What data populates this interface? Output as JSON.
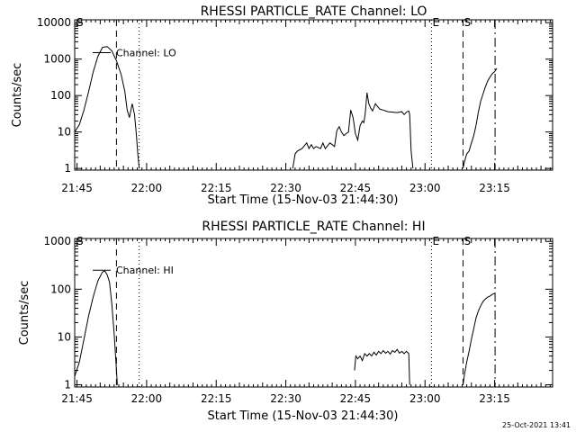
{
  "footer": {
    "timestamp": "25-Oct-2021 13:41"
  },
  "colors": {
    "background": "#ffffff",
    "ink": "#000000"
  },
  "chart_data": [
    {
      "type": "line",
      "title": "RHESSI PARTICLE_RATE Channel: LO",
      "xlabel": "Start Time (15-Nov-03 21:44:30)",
      "ylabel": "Counts/sec",
      "yscale": "log",
      "ylim": [
        0.9,
        12000
      ],
      "xlim_minutes": [
        0,
        103
      ],
      "y_ticks": [
        {
          "v": 1,
          "label": "1"
        },
        {
          "v": 10,
          "label": "10"
        },
        {
          "v": 100,
          "label": "100"
        },
        {
          "v": 1000,
          "label": "1000"
        },
        {
          "v": 10000,
          "label": "10000"
        }
      ],
      "x_ticks": [
        {
          "m": 0.5,
          "label": "21:45"
        },
        {
          "m": 15.5,
          "label": "22:00"
        },
        {
          "m": 30.5,
          "label": "22:15"
        },
        {
          "m": 45.5,
          "label": "22:30"
        },
        {
          "m": 60.5,
          "label": "22:45"
        },
        {
          "m": 75.5,
          "label": "23:00"
        },
        {
          "m": 90.5,
          "label": "23:15"
        }
      ],
      "legend": {
        "label": "Channel: LO",
        "at_y": 1500
      },
      "markers": [
        {
          "m": 0.2,
          "style": "none",
          "label": "S"
        },
        {
          "m": 9.0,
          "style": "dashed",
          "label": ""
        },
        {
          "m": 13.9,
          "style": "dotted",
          "label": ""
        },
        {
          "m": 76.9,
          "style": "dotted",
          "label": "E"
        },
        {
          "m": 83.7,
          "style": "dashed",
          "label": "S"
        },
        {
          "m": 90.6,
          "style": "dashdot",
          "label": ""
        }
      ],
      "series": [
        {
          "segments": [
            [
              [
                0,
                10
              ],
              [
                1,
                16
              ],
              [
                2,
                40
              ],
              [
                3,
                130
              ],
              [
                4,
                450
              ],
              [
                5,
                1200
              ],
              [
                6,
                2100
              ],
              [
                7,
                2200
              ],
              [
                8,
                1700
              ],
              [
                9,
                900
              ],
              [
                10,
                380
              ],
              [
                10.8,
                130
              ],
              [
                11.3,
                40
              ],
              [
                11.8,
                25
              ],
              [
                12.4,
                60
              ],
              [
                12.9,
                30
              ],
              [
                13.3,
                8
              ],
              [
                13.6,
                2.5
              ],
              [
                13.9,
                1
              ]
            ],
            [
              [
                47,
                1
              ],
              [
                47.5,
                2.5
              ],
              [
                48,
                3
              ],
              [
                49,
                3.5
              ],
              [
                50,
                5
              ],
              [
                50.5,
                3.5
              ],
              [
                51,
                4.5
              ],
              [
                51.5,
                3.5
              ],
              [
                52,
                4
              ],
              [
                53,
                3.5
              ],
              [
                53.5,
                5
              ],
              [
                54,
                3.5
              ],
              [
                55,
                5
              ],
              [
                55.5,
                4.5
              ],
              [
                56,
                4
              ],
              [
                56.5,
                11
              ],
              [
                57,
                14
              ],
              [
                57.5,
                10
              ],
              [
                58,
                8
              ],
              [
                58.5,
                9
              ],
              [
                59,
                10
              ],
              [
                59.5,
                40
              ],
              [
                60,
                25
              ],
              [
                60.5,
                9
              ],
              [
                61,
                6
              ],
              [
                61.5,
                15
              ],
              [
                62,
                20
              ],
              [
                62.3,
                18
              ],
              [
                62.6,
                30
              ],
              [
                63,
                120
              ],
              [
                63.4,
                60
              ],
              [
                63.8,
                45
              ],
              [
                64.2,
                38
              ],
              [
                64.8,
                60
              ],
              [
                65.3,
                50
              ],
              [
                65.8,
                42
              ],
              [
                66.5,
                40
              ],
              [
                67.5,
                36
              ],
              [
                68.5,
                35
              ],
              [
                69.5,
                34
              ],
              [
                70.5,
                36
              ],
              [
                71,
                30
              ],
              [
                71.5,
                35
              ],
              [
                72,
                38
              ],
              [
                72.2,
                30
              ],
              [
                72.5,
                3
              ],
              [
                72.9,
                1
              ]
            ],
            [
              [
                83.7,
                1
              ],
              [
                84,
                1.5
              ],
              [
                84.5,
                2.5
              ],
              [
                85,
                3
              ],
              [
                85.5,
                5
              ],
              [
                86,
                8
              ],
              [
                86.5,
                15
              ],
              [
                87,
                35
              ],
              [
                87.5,
                70
              ],
              [
                88,
                110
              ],
              [
                88.5,
                170
              ],
              [
                89,
                250
              ],
              [
                89.5,
                320
              ],
              [
                90,
                400
              ],
              [
                90.5,
                450
              ],
              [
                91,
                560
              ]
            ]
          ]
        }
      ]
    },
    {
      "type": "line",
      "title": "RHESSI PARTICLE_RATE Channel: HI",
      "xlabel": "Start Time (15-Nov-03 21:44:30)",
      "ylabel": "Counts/sec",
      "yscale": "log",
      "ylim": [
        0.9,
        1150
      ],
      "xlim_minutes": [
        0,
        103
      ],
      "y_ticks": [
        {
          "v": 1,
          "label": "1"
        },
        {
          "v": 10,
          "label": "10"
        },
        {
          "v": 100,
          "label": "100"
        },
        {
          "v": 1000,
          "label": "1000"
        }
      ],
      "x_ticks": [
        {
          "m": 0.5,
          "label": "21:45"
        },
        {
          "m": 15.5,
          "label": "22:00"
        },
        {
          "m": 30.5,
          "label": "22:15"
        },
        {
          "m": 45.5,
          "label": "22:30"
        },
        {
          "m": 60.5,
          "label": "22:45"
        },
        {
          "m": 75.5,
          "label": "23:00"
        },
        {
          "m": 90.5,
          "label": "23:15"
        }
      ],
      "legend": {
        "label": "Channel: HI",
        "at_y": 250
      },
      "markers": [
        {
          "m": 0.2,
          "style": "none",
          "label": "S"
        },
        {
          "m": 9.0,
          "style": "dashed",
          "label": ""
        },
        {
          "m": 13.9,
          "style": "dotted",
          "label": ""
        },
        {
          "m": 76.9,
          "style": "dotted",
          "label": "E"
        },
        {
          "m": 83.7,
          "style": "dashed",
          "label": "S"
        },
        {
          "m": 90.6,
          "style": "dashdot",
          "label": ""
        }
      ],
      "series": [
        {
          "segments": [
            [
              [
                0,
                1.5
              ],
              [
                1,
                3
              ],
              [
                2,
                9
              ],
              [
                3,
                28
              ],
              [
                4,
                70
              ],
              [
                5,
                150
              ],
              [
                6,
                230
              ],
              [
                6.5,
                240
              ],
              [
                7,
                200
              ],
              [
                7.5,
                140
              ],
              [
                8,
                50
              ],
              [
                8.5,
                12
              ],
              [
                8.8,
                4
              ],
              [
                9.2,
                1
              ]
            ],
            [
              [
                60.3,
                2
              ],
              [
                60.6,
                4
              ],
              [
                61,
                3.5
              ],
              [
                61.5,
                4
              ],
              [
                62,
                3.2
              ],
              [
                62.5,
                4.5
              ],
              [
                63,
                4
              ],
              [
                63.5,
                4.5
              ],
              [
                64,
                4
              ],
              [
                64.5,
                4.8
              ],
              [
                65,
                4.2
              ],
              [
                65.5,
                5
              ],
              [
                66,
                4.5
              ],
              [
                66.5,
                5.2
              ],
              [
                67,
                4.6
              ],
              [
                67.5,
                5
              ],
              [
                68,
                4.4
              ],
              [
                68.5,
                5.2
              ],
              [
                69,
                4.8
              ],
              [
                69.5,
                5.5
              ],
              [
                70,
                4.6
              ],
              [
                70.5,
                5
              ],
              [
                71,
                4.5
              ],
              [
                71.5,
                5
              ],
              [
                72,
                4.5
              ],
              [
                72.2,
                1
              ]
            ],
            [
              [
                83.7,
                1
              ],
              [
                84,
                1.6
              ],
              [
                84.5,
                3
              ],
              [
                85,
                5
              ],
              [
                85.5,
                9
              ],
              [
                86,
                15
              ],
              [
                86.5,
                25
              ],
              [
                87,
                35
              ],
              [
                87.5,
                45
              ],
              [
                88,
                55
              ],
              [
                88.5,
                62
              ],
              [
                89,
                68
              ],
              [
                89.5,
                72
              ],
              [
                90,
                78
              ],
              [
                90.5,
                82
              ]
            ]
          ]
        }
      ]
    }
  ]
}
